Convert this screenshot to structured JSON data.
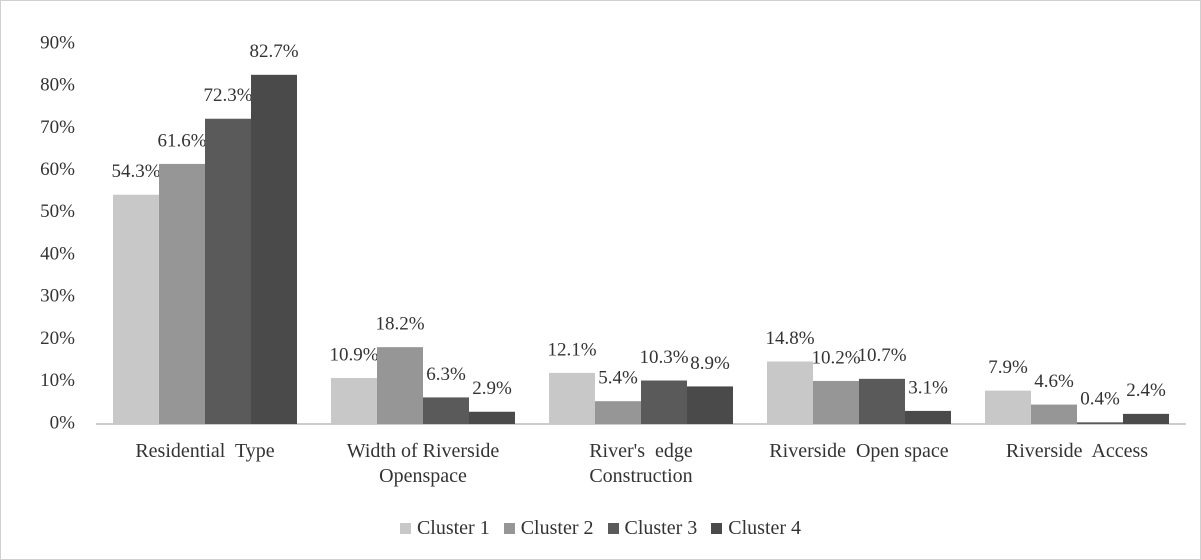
{
  "chart_data": {
    "type": "bar",
    "categories": [
      "Residential  Type",
      "Width of Riverside Openspace",
      "River's  edge Construction",
      "Riverside  Open space",
      "Riverside  Access"
    ],
    "series": [
      {
        "name": "Cluster 1",
        "color": "#c8c8c8",
        "values": [
          54.3,
          10.9,
          12.1,
          14.8,
          7.9
        ],
        "value_labels": [
          "54.3%",
          "10.9%",
          "12.1%",
          "14.8%",
          "7.9%"
        ]
      },
      {
        "name": "Cluster 2",
        "color": "#969696",
        "values": [
          61.6,
          18.2,
          5.4,
          10.2,
          4.6
        ],
        "value_labels": [
          "61.6%",
          "18.2%",
          "5.4%",
          "10.2%",
          "4.6%"
        ]
      },
      {
        "name": "Cluster 3",
        "color": "#5a5a5a",
        "values": [
          72.3,
          6.3,
          10.3,
          10.7,
          0.4
        ],
        "value_labels": [
          "72.3%",
          "6.3%",
          "10.3%",
          "10.7%",
          "0.4%"
        ]
      },
      {
        "name": "Cluster 4",
        "color": "#4a4a4a",
        "values": [
          82.7,
          2.9,
          8.9,
          3.1,
          2.4
        ],
        "value_labels": [
          "82.7%",
          "2.9%",
          "8.9%",
          "3.1%",
          "2.4%"
        ]
      }
    ],
    "ylim": [
      0,
      90
    ],
    "yticks": [
      {
        "value": 0,
        "label": "0%"
      },
      {
        "value": 10,
        "label": "10%"
      },
      {
        "value": 20,
        "label": "20%"
      },
      {
        "value": 30,
        "label": "30%"
      },
      {
        "value": 40,
        "label": "40%"
      },
      {
        "value": 50,
        "label": "50%"
      },
      {
        "value": 60,
        "label": "60%"
      },
      {
        "value": 70,
        "label": "70%"
      },
      {
        "value": 80,
        "label": "80%"
      },
      {
        "value": 90,
        "label": "90%"
      }
    ],
    "grid": false,
    "legend": "bottom"
  }
}
